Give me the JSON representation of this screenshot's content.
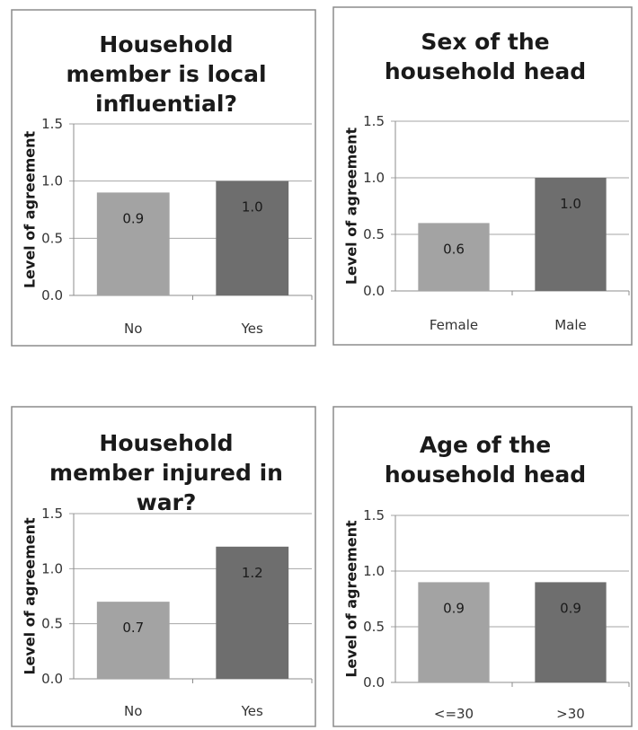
{
  "colors": {
    "bar_light": "#a3a3a3",
    "bar_dark": "#6e6e6e",
    "frame": "#8c8c8c",
    "grid": "#a6a6a6"
  },
  "chart_data": [
    {
      "type": "bar",
      "title_lines": [
        "Household",
        "member is local",
        "influential?"
      ],
      "ylabel": "Level of agreement",
      "ylim": [
        0,
        1.5
      ],
      "yticks": [
        "0.0",
        "0.5",
        "1.0",
        "1.5"
      ],
      "grid": true,
      "categories": [
        "No",
        "Yes"
      ],
      "values": [
        0.9,
        1.0
      ],
      "value_labels": [
        "0.9",
        "1.0"
      ]
    },
    {
      "type": "bar",
      "title_lines": [
        "Sex of the",
        "household head"
      ],
      "ylabel": "Level of agreement",
      "ylim": [
        0,
        1.5
      ],
      "yticks": [
        "0.0",
        "0.5",
        "1.0",
        "1.5"
      ],
      "grid": true,
      "categories": [
        "Female",
        "Male"
      ],
      "values": [
        0.6,
        1.0
      ],
      "value_labels": [
        "0.6",
        "1.0"
      ]
    },
    {
      "type": "bar",
      "title_lines": [
        "Household",
        "member injured in",
        "war?"
      ],
      "ylabel": "Level of agreement",
      "ylim": [
        0,
        1.5
      ],
      "yticks": [
        "0.0",
        "0.5",
        "1.0",
        "1.5"
      ],
      "grid": true,
      "categories": [
        "No",
        "Yes"
      ],
      "values": [
        0.7,
        1.2
      ],
      "value_labels": [
        "0.7",
        "1.2"
      ]
    },
    {
      "type": "bar",
      "title_lines": [
        "Age of the",
        "household head"
      ],
      "ylabel": "Level of agreement",
      "ylim": [
        0,
        1.5
      ],
      "yticks": [
        "0.0",
        "0.5",
        "1.0",
        "1.5"
      ],
      "grid": true,
      "categories": [
        "<=30",
        ">30"
      ],
      "values": [
        0.9,
        0.9
      ],
      "value_labels": [
        "0.9",
        "0.9"
      ]
    }
  ]
}
